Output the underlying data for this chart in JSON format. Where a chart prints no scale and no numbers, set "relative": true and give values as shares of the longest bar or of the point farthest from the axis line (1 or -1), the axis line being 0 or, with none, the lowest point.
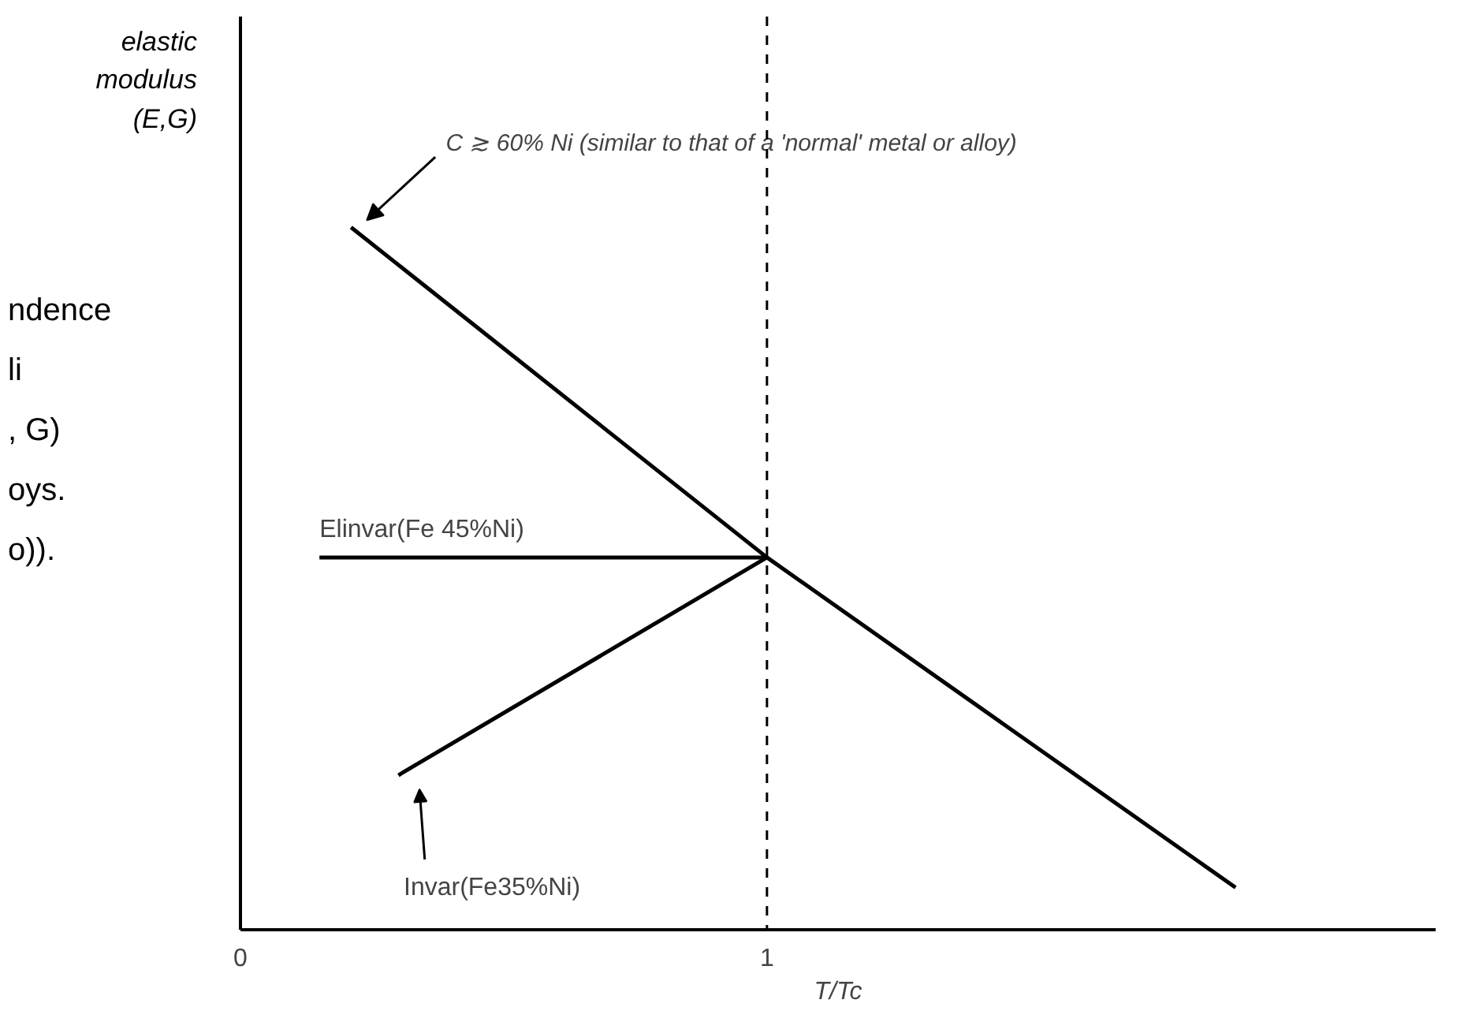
{
  "chart_data": {
    "type": "line",
    "relative": true,
    "xlabel": "T/Tc",
    "ylabel": "elastic modulus (E,G)",
    "xlim": [
      0,
      2.27
    ],
    "xticks": [
      0,
      1
    ],
    "grid": false,
    "marker": "none",
    "line_style": "solid",
    "series": [
      {
        "name": "C ≳ 60% Ni (similar to that of a 'normal' metal or alloy)",
        "color": "#000000",
        "x": [
          0.21,
          1.0,
          1.89
        ],
        "values": [
          1,
          0.53,
          0.06
        ]
      },
      {
        "name": "Elinvar(Fe 45%Ni)",
        "color": "#000000",
        "x": [
          0.15,
          1.0
        ],
        "values": [
          0.53,
          0.53
        ]
      },
      {
        "name": "Invar(Fe35%Ni)",
        "color": "#000000",
        "x": [
          0.3,
          1.0
        ],
        "values": [
          0.22,
          0.53
        ]
      }
    ],
    "ref_lines": [
      {
        "axis": "x",
        "value": 1,
        "line_style": "dashed",
        "color": "#000000"
      }
    ],
    "annotations": [
      "ndence\nli\n, G)\noys.\no))."
    ]
  }
}
